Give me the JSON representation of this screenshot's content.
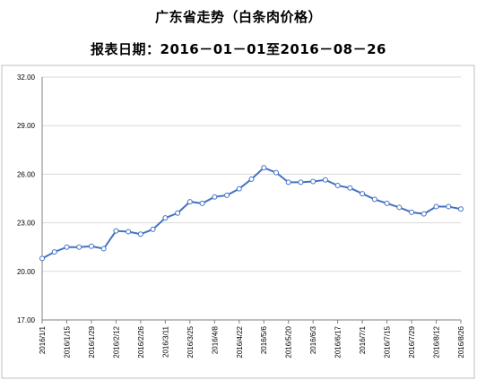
{
  "header": {
    "title": "广东省走势（白条肉价格）",
    "subtitle": "报表日期：2016－01－01至2016－08－26"
  },
  "colors": {
    "line": "#4472C4",
    "marker_fill": "#ffffff",
    "grid": "#d9d9d9",
    "axis": "#808080"
  },
  "chart_data": {
    "type": "line",
    "title": "广东省走势（白条肉价格）",
    "subtitle": "报表日期：2016－01－01至2016－08－26",
    "xlabel": "",
    "ylabel": "",
    "ylim": [
      17.0,
      32.0
    ],
    "yticks": [
      "17.00",
      "20.00",
      "23.00",
      "26.00",
      "29.00",
      "32.00"
    ],
    "grid": "horizontal",
    "legend": "none",
    "x": [
      "2016/1/1",
      "2016/1/8",
      "2016/1/15",
      "2016/1/22",
      "2016/1/29",
      "2016/2/5",
      "2016/2/12",
      "2016/2/19",
      "2016/2/26",
      "2016/3/4",
      "2016/3/11",
      "2016/3/18",
      "2016/3/25",
      "2016/4/1",
      "2016/4/8",
      "2016/4/15",
      "2016/4/22",
      "2016/4/29",
      "2016/5/6",
      "2016/5/13",
      "2016/5/20",
      "2016/5/27",
      "2016/6/3",
      "2016/6/10",
      "2016/6/17",
      "2016/6/24",
      "2016/7/1",
      "2016/7/8",
      "2016/7/15",
      "2016/7/22",
      "2016/7/29",
      "2016/8/5",
      "2016/8/12",
      "2016/8/19",
      "2016/8/26"
    ],
    "xtick_labels": [
      "2016/1/1",
      "2016/1/15",
      "2016/1/29",
      "2016/2/12",
      "2016/2/26",
      "2016/3/11",
      "2016/3/25",
      "2016/4/8",
      "2016/4/22",
      "2016/5/6",
      "2016/5/20",
      "2016/6/3",
      "2016/6/17",
      "2016/7/1",
      "2016/7/15",
      "2016/7/29",
      "2016/8/12",
      "2016/8/26"
    ],
    "series": [
      {
        "values": [
          20.8,
          21.2,
          21.5,
          21.5,
          21.55,
          21.4,
          22.5,
          22.45,
          22.3,
          22.6,
          23.3,
          23.6,
          24.3,
          24.2,
          24.6,
          24.7,
          25.1,
          25.7,
          26.4,
          26.1,
          25.5,
          25.5,
          25.55,
          25.65,
          25.3,
          25.15,
          24.8,
          24.45,
          24.2,
          23.95,
          23.65,
          23.55,
          24.0,
          24.0,
          23.85
        ]
      }
    ]
  }
}
